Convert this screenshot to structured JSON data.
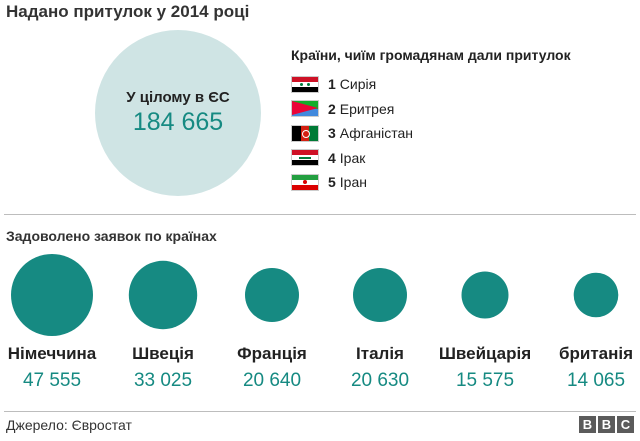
{
  "title": "Надано притулок у 2014 році",
  "total": {
    "label": "У цілому в ЄС",
    "value": "184 665"
  },
  "legend": {
    "title": "Країни, чиїм громадянам дали притулок",
    "items": [
      {
        "rank": "1",
        "name": "Сирія",
        "flag": "syria-flag-icon"
      },
      {
        "rank": "2",
        "name": "Еритрея",
        "flag": "eritrea-flag-icon"
      },
      {
        "rank": "3",
        "name": "Афганістан",
        "flag": "afghanistan-flag-icon"
      },
      {
        "rank": "4",
        "name": "Ірак",
        "flag": "iraq-flag-icon"
      },
      {
        "rank": "5",
        "name": "Іран",
        "flag": "iran-flag-icon"
      }
    ]
  },
  "subtitle": "Задоволено заявок по країнах",
  "chart_data": {
    "type": "bubble",
    "title": "Задоволено заявок по країнах",
    "categories": [
      "Німеччина",
      "Швеція",
      "Франція",
      "Італія",
      "Швейцарія",
      "британія"
    ],
    "values": [
      47555,
      33025,
      20640,
      20630,
      15575,
      14065
    ],
    "value_labels": [
      "47 555",
      "33 025",
      "20 640",
      "20 630",
      "15 575",
      "14 065"
    ],
    "color": "#168a82"
  },
  "colors": {
    "accent": "#168a82",
    "total_bg": "#cfe4e4"
  },
  "source": "Джерело: Євростат",
  "logo": [
    "B",
    "B",
    "C"
  ]
}
